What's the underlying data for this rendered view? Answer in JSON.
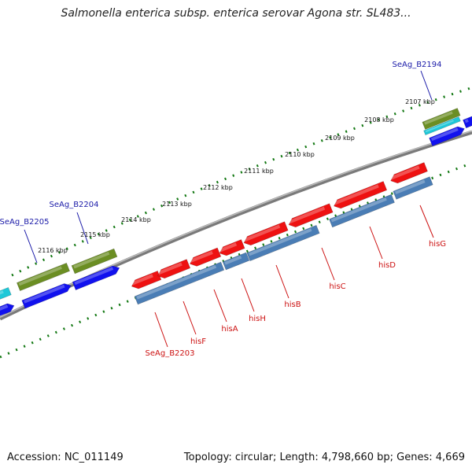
{
  "title": "Salmonella enterica subsp. enterica serovar Agona str. SL483...",
  "footer": {
    "accession": "Accession: NC_011149",
    "summary": "Topology: circular; Length: 4,798,660 bp; Genes: 4,669"
  },
  "scale_labels": [
    "2107 kbp",
    "2108 kbp",
    "2109 kbp",
    "2110 kbp",
    "2111 kbp",
    "2112 kbp",
    "2113 kbp",
    "2114 kbp",
    "2115 kbp",
    "2116 kbp"
  ],
  "gene_labels": {
    "top": [
      "SeAg_B2194",
      "SeAg_B2204",
      "SeAg_B2205"
    ],
    "bottom": [
      "SeAg_B2203",
      "hisF",
      "hisA",
      "hisH",
      "hisB",
      "hisC",
      "hisD",
      "hisG"
    ]
  },
  "colors": {
    "red_gene": "#ee1111",
    "steel_gene": "#4a7db5",
    "blue_gene": "#1111ee",
    "olive_gene": "#6b8e23",
    "cyan_gene": "#1ec8d8",
    "backbone": "#7a7a7a",
    "ticks": "#117711",
    "label_blue": "#1a1aa8",
    "label_red": "#cc1111"
  }
}
